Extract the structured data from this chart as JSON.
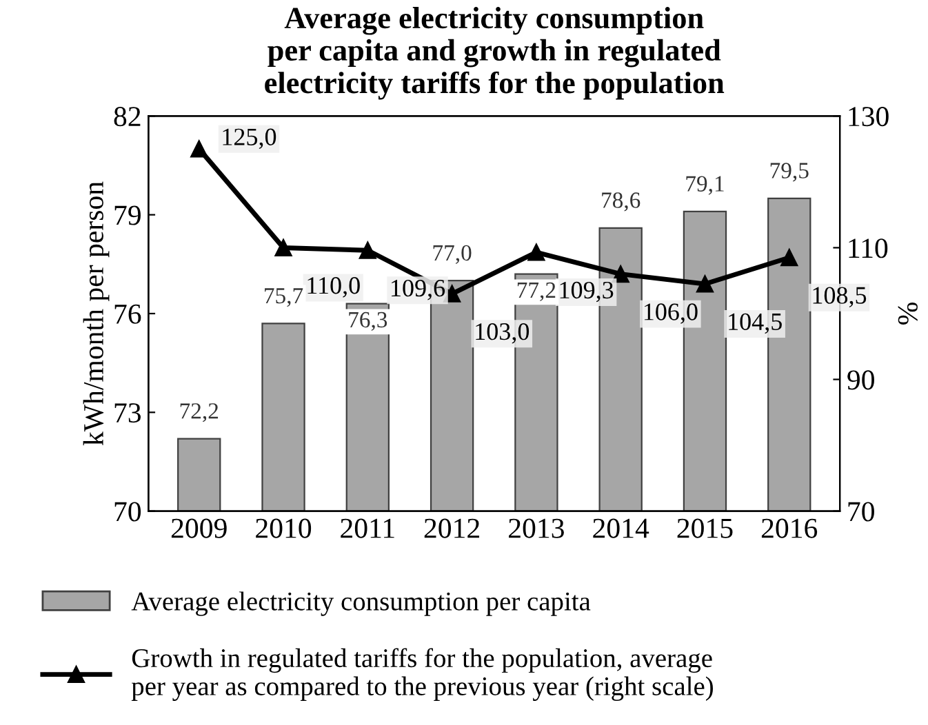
{
  "chart_data": {
    "type": "bar",
    "title": "Average electricity consumption\nper capita and growth in regulated\nelectricity tariffs for the population",
    "ylabel": "kWh/month per person",
    "y2label": "%",
    "categories": [
      "2009",
      "2010",
      "2011",
      "2012",
      "2013",
      "2014",
      "2015",
      "2016"
    ],
    "series": [
      {
        "name": "Average electricity consumption per capita",
        "color": "#a6a6a6",
        "values": [
          72.2,
          75.7,
          76.3,
          77.0,
          77.2,
          78.6,
          79.1,
          79.5
        ],
        "value_labels": [
          "72,2",
          "75,7",
          "76,3",
          "77,0",
          "77,2",
          "78,6",
          "79,1",
          "79,5"
        ]
      },
      {
        "name": "Growth in regulated tariffs for the population, average\nper year as compared to the previous year (right scale)",
        "type": "line",
        "axis": "y2",
        "color": "#000000",
        "marker": "triangle",
        "values": [
          125.0,
          110.0,
          109.6,
          103.0,
          109.3,
          106.0,
          104.5,
          108.5
        ],
        "value_labels": [
          "125,0",
          "110,0",
          "109,6",
          "103,0",
          "109,3",
          "106,0",
          "104,5",
          "108,5"
        ]
      }
    ],
    "ylim": [
      70,
      82
    ],
    "yticks": [
      70,
      73,
      76,
      79,
      82
    ],
    "y2lim": [
      70,
      130
    ],
    "y2ticks": [
      70,
      90,
      110,
      130
    ],
    "legend": "bottom",
    "grid": false
  }
}
